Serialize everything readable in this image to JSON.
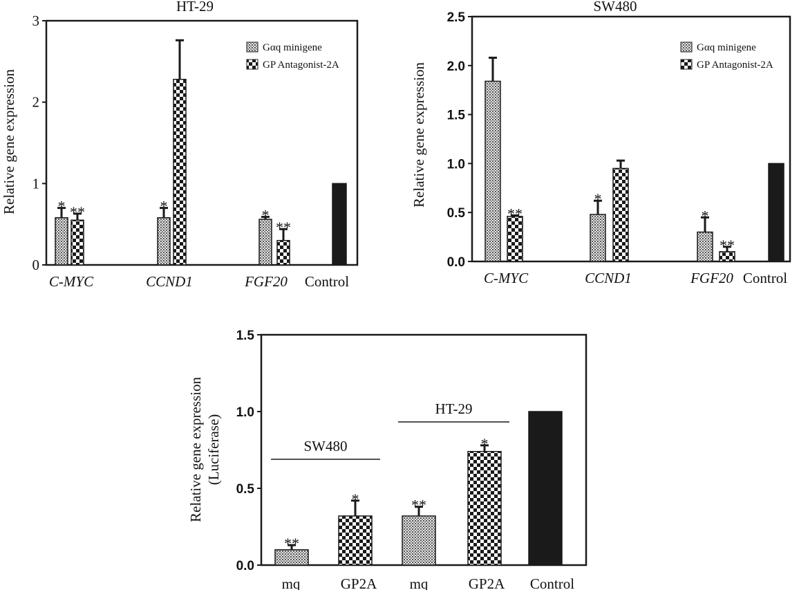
{
  "chart_data": [
    {
      "type": "bar",
      "title": "HT-29",
      "ylabel": "Relative gene expression",
      "ylim": [
        0,
        3
      ],
      "yticks": [
        "0",
        "1",
        "2",
        "3"
      ],
      "categories": [
        "C-MYC",
        "CCND1",
        "FGF20",
        "Control"
      ],
      "series": [
        {
          "name": "Gαq minigene",
          "values": [
            0.58,
            0.58,
            0.56,
            null
          ],
          "errors": [
            0.12,
            0.12,
            0.03,
            null
          ],
          "significance": [
            "*",
            "*",
            "*",
            ""
          ]
        },
        {
          "name": "GP Antagonist-2A",
          "values": [
            0.55,
            2.28,
            0.3,
            null
          ],
          "errors": [
            0.08,
            0.48,
            0.14,
            null
          ],
          "significance": [
            "**",
            "",
            "**",
            ""
          ]
        },
        {
          "name": "",
          "values": [
            null,
            null,
            null,
            1.0
          ],
          "errors": [
            null,
            null,
            null,
            null
          ],
          "significance": [
            "",
            "",
            "",
            ""
          ]
        }
      ],
      "legend": "top-right"
    },
    {
      "type": "bar",
      "title": "SW480",
      "ylabel": "Relative gene expression",
      "ylim": [
        0,
        2.5
      ],
      "yticks": [
        "0.0",
        "0.5",
        "1.0",
        "1.5",
        "2.0",
        "2.5"
      ],
      "categories": [
        "C-MYC",
        "CCND1",
        "FGF20",
        "Control"
      ],
      "series": [
        {
          "name": "Gαq minigene",
          "values": [
            1.84,
            0.48,
            0.3,
            null
          ],
          "errors": [
            0.24,
            0.14,
            0.15,
            null
          ],
          "significance": [
            "",
            "*",
            "*",
            ""
          ]
        },
        {
          "name": "GP Antagonist-2A",
          "values": [
            0.46,
            0.95,
            0.1,
            null
          ],
          "errors": [
            0.01,
            0.08,
            0.05,
            null
          ],
          "significance": [
            "**",
            "",
            "**",
            ""
          ]
        },
        {
          "name": "",
          "values": [
            null,
            null,
            null,
            1.0
          ],
          "errors": [
            null,
            null,
            null,
            null
          ],
          "significance": [
            "",
            "",
            "",
            ""
          ]
        }
      ],
      "legend": "top-right"
    },
    {
      "type": "bar",
      "title": "",
      "ylabel": "Relative gene expression",
      "ylabel2": "(Luciferase)",
      "ylim": [
        0,
        1.5
      ],
      "yticks": [
        "0.0",
        "0.5",
        "1.0",
        "1.5"
      ],
      "categories": [
        "mq",
        "GP2A",
        "mq",
        "GP2A",
        "Control"
      ],
      "values": [
        0.1,
        0.32,
        0.32,
        0.74,
        1.0
      ],
      "errors": [
        0.03,
        0.1,
        0.06,
        0.04,
        null
      ],
      "significance": [
        "**",
        "*",
        "**",
        "*",
        ""
      ],
      "patterns": [
        "dots",
        "check",
        "dots",
        "check",
        "solid"
      ],
      "groups": [
        {
          "label": "SW480",
          "from": 0,
          "to": 1
        },
        {
          "label": "HT-29",
          "from": 2,
          "to": 3
        }
      ]
    }
  ]
}
